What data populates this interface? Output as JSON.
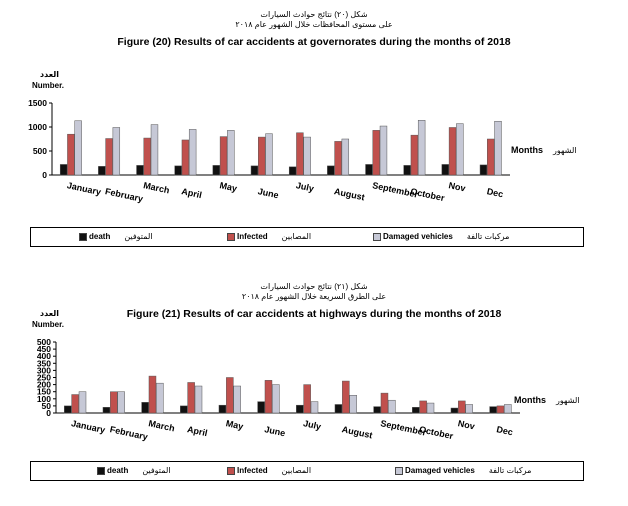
{
  "figures": [
    {
      "title_ar1": "شكل (٢٠) نتائج حوادث السيارات",
      "title_ar2": "على مستوى المحافظات خلال الشهور عام ٢٠١٨",
      "title_en": "Figure (20) Results of car accidents at governorates during the months of 2018",
      "ylabel_ar": "العدد",
      "ylabel_en": "Number.",
      "xlabel_en": "Months",
      "xlabel_ar": "الشهور"
    },
    {
      "title_ar1": "شكل (٢١) نتائج حوادث السيارات",
      "title_ar2": "على الطرق السريعة خلال الشهور عام ٢٠١٨",
      "title_en": "Figure (21) Results of car accidents at highways during the months of 2018",
      "ylabel_ar": "العدد",
      "ylabel_en": "Number.",
      "xlabel_en": "Months",
      "xlabel_ar": "الشهور"
    }
  ],
  "legend": [
    {
      "en": "death",
      "ar": "المتوفين"
    },
    {
      "en": "Infected",
      "ar": "المصابين"
    },
    {
      "en": "Damaged vehicles",
      "ar": "مركبات تالفة"
    }
  ],
  "colors": {
    "death": "#111111",
    "infected": "#c0504d",
    "damaged": "#c6c8d6"
  },
  "chart_data": [
    {
      "type": "bar",
      "categories": [
        "January",
        "February",
        "March",
        "April",
        "May",
        "June",
        "July",
        "August",
        "September",
        "October",
        "Nov",
        "Dec"
      ],
      "ylim": [
        0,
        1500
      ],
      "yticks": [
        0,
        500,
        1000,
        1500
      ],
      "grid": false,
      "legend_position": "bottom",
      "series": [
        {
          "name": "death",
          "values": [
            220,
            180,
            200,
            190,
            200,
            190,
            170,
            190,
            220,
            200,
            220,
            210
          ]
        },
        {
          "name": "Infected",
          "values": [
            850,
            760,
            770,
            730,
            800,
            790,
            880,
            700,
            930,
            830,
            990,
            750
          ]
        },
        {
          "name": "Damaged vehicles",
          "values": [
            1130,
            990,
            1050,
            950,
            930,
            860,
            790,
            750,
            1020,
            1140,
            1070,
            1120
          ]
        }
      ]
    },
    {
      "type": "bar",
      "categories": [
        "January",
        "February",
        "March",
        "April",
        "May",
        "June",
        "July",
        "August",
        "September",
        "October",
        "Nov",
        "Dec"
      ],
      "ylim": [
        0,
        500
      ],
      "yticks": [
        0,
        50,
        100,
        150,
        200,
        250,
        300,
        350,
        400,
        450,
        500
      ],
      "grid": false,
      "legend_position": "bottom",
      "series": [
        {
          "name": "death",
          "values": [
            50,
            40,
            75,
            50,
            55,
            80,
            55,
            60,
            45,
            40,
            35,
            45
          ]
        },
        {
          "name": "Infected",
          "values": [
            130,
            150,
            260,
            215,
            250,
            230,
            200,
            225,
            140,
            85,
            85,
            50
          ]
        },
        {
          "name": "Damaged vehicles",
          "values": [
            150,
            150,
            210,
            190,
            190,
            200,
            80,
            125,
            90,
            70,
            60,
            60
          ]
        }
      ]
    }
  ]
}
